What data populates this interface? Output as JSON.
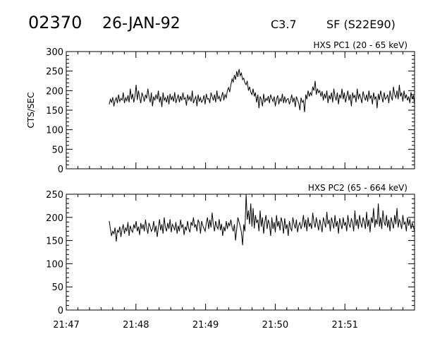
{
  "header": {
    "event_id": "02370",
    "date": "26-JAN-92",
    "goes_class": "C3.7",
    "flare_info": "SF (S22E90)"
  },
  "chart_data": [
    {
      "type": "line",
      "label": "HXS PC1 (20 - 65 keV)",
      "ylabel": "CTS/SEC",
      "ylim": [
        0,
        300
      ],
      "yticks": [
        0,
        50,
        100,
        150,
        200,
        250,
        300
      ],
      "xlim": [
        0,
        300
      ],
      "xticks": [
        0,
        60,
        120,
        180,
        240
      ],
      "xtick_labels": [
        "21:47",
        "21:48",
        "21:49",
        "21:50",
        "21:51"
      ],
      "data_start": 37,
      "data_end": 300,
      "values": [
        165,
        178,
        170,
        183,
        160,
        175,
        182,
        168,
        190,
        172,
        180,
        176,
        195,
        168,
        182,
        174,
        188,
        170,
        205,
        178,
        192,
        170,
        185,
        215,
        176,
        200,
        182,
        168,
        195,
        185,
        172,
        190,
        180,
        205,
        185,
        170,
        195,
        160,
        185,
        175,
        190,
        178,
        200,
        170,
        185,
        158,
        195,
        175,
        182,
        170,
        188,
        165,
        192,
        176,
        185,
        172,
        196,
        168,
        180,
        190,
        170,
        186,
        175,
        195,
        178,
        182,
        162,
        190,
        176,
        185,
        172,
        200,
        168,
        178,
        185,
        160,
        190,
        172,
        182,
        170,
        175,
        188,
        165,
        192,
        178,
        180,
        168,
        195,
        185,
        175,
        190,
        170,
        200,
        178,
        186,
        172,
        185,
        196,
        175,
        190,
        182,
        200,
        208,
        196,
        215,
        230,
        222,
        240,
        228,
        250,
        235,
        255,
        238,
        245,
        228,
        232,
        220,
        215,
        225,
        200,
        210,
        196,
        190,
        205,
        185,
        195,
        170,
        190,
        155,
        185,
        178,
        160,
        192,
        170,
        180,
        175,
        186,
        168,
        190,
        180,
        172,
        185,
        160,
        178,
        188,
        165,
        180,
        172,
        192,
        168,
        185,
        170,
        178,
        180,
        165,
        175,
        190,
        170,
        182,
        158,
        185,
        176,
        168,
        150,
        182,
        170,
        175,
        145,
        190,
        178,
        200,
        185,
        195,
        188,
        210,
        200,
        225,
        190,
        205,
        195,
        200,
        185,
        198,
        175,
        192,
        180,
        200,
        168,
        188,
        178,
        195,
        170,
        205,
        185,
        175,
        195,
        165,
        190,
        180,
        205,
        178,
        195,
        170,
        185,
        200,
        175,
        190,
        160,
        195,
        182,
        188,
        170,
        205,
        178,
        192,
        182,
        168,
        198,
        185,
        175,
        190,
        172,
        200,
        180,
        188,
        165,
        195,
        178,
        185,
        155,
        192,
        176,
        200,
        185,
        170,
        195,
        178,
        182,
        190,
        168,
        200,
        185,
        175,
        210,
        190,
        182,
        200,
        178,
        215,
        185,
        195,
        172,
        200,
        180,
        190,
        175,
        185,
        168,
        196,
        178,
        188,
        165
      ]
    },
    {
      "type": "line",
      "label": "HXS PC2 (65 - 664 keV)",
      "ylabel": "",
      "ylim": [
        0,
        250
      ],
      "yticks": [
        0,
        50,
        100,
        150,
        200,
        250
      ],
      "xlim": [
        0,
        300
      ],
      "xticks": [
        0,
        60,
        120,
        180,
        240
      ],
      "xtick_labels": [
        "21:47",
        "21:48",
        "21:49",
        "21:50",
        "21:51"
      ],
      "data_start": 37,
      "data_end": 300,
      "values": [
        192,
        175,
        160,
        170,
        165,
        178,
        148,
        172,
        168,
        180,
        158,
        175,
        185,
        165,
        178,
        170,
        190,
        160,
        182,
        172,
        168,
        185,
        176,
        192,
        170,
        180,
        162,
        188,
        175,
        185,
        170,
        195,
        178,
        165,
        188,
        180,
        170,
        175,
        192,
        168,
        182,
        158,
        178,
        196,
        172,
        185,
        165,
        200,
        178,
        170,
        188,
        175,
        196,
        168,
        185,
        180,
        172,
        190,
        165,
        182,
        170,
        195,
        178,
        185,
        162,
        180,
        172,
        192,
        175,
        168,
        190,
        182,
        200,
        178,
        185,
        170,
        195,
        188,
        165,
        192,
        182,
        176,
        170,
        188,
        200,
        175,
        195,
        178,
        210,
        185,
        170,
        192,
        180,
        175,
        196,
        172,
        186,
        160,
        180,
        170,
        192,
        175,
        188,
        182,
        195,
        178,
        170,
        185,
        150,
        175,
        200,
        190,
        180,
        168,
        140,
        185,
        170,
        250,
        195,
        215,
        185,
        230,
        180,
        220,
        176,
        205,
        188,
        195,
        170,
        215,
        180,
        200,
        165,
        190,
        205,
        175,
        195,
        185,
        160,
        200,
        175,
        190,
        168,
        205,
        180,
        192,
        172,
        200,
        188,
        165,
        198,
        175,
        185,
        160,
        192,
        178,
        170,
        200,
        185,
        176,
        195,
        168,
        182,
        190,
        175,
        185,
        205,
        178,
        195,
        170,
        200,
        180,
        188,
        175,
        210,
        190,
        178,
        200,
        185,
        172,
        195,
        182,
        168,
        200,
        190,
        178,
        212,
        185,
        195,
        170,
        200,
        188,
        176,
        205,
        180,
        192,
        165,
        198,
        185,
        175,
        200,
        182,
        190,
        170,
        205,
        185,
        178,
        198,
        188,
        170,
        215,
        182,
        196,
        175,
        205,
        188,
        178,
        200,
        190,
        175,
        212,
        180,
        195,
        168,
        200,
        188,
        220,
        178,
        196,
        185,
        230,
        180,
        200,
        175,
        215,
        190,
        182,
        205,
        178,
        195,
        170,
        200,
        188,
        176,
        205,
        185,
        220,
        178,
        196,
        188,
        175,
        205,
        185,
        190,
        170,
        200,
        182,
        196,
        175,
        188,
        180,
        170
      ]
    }
  ]
}
